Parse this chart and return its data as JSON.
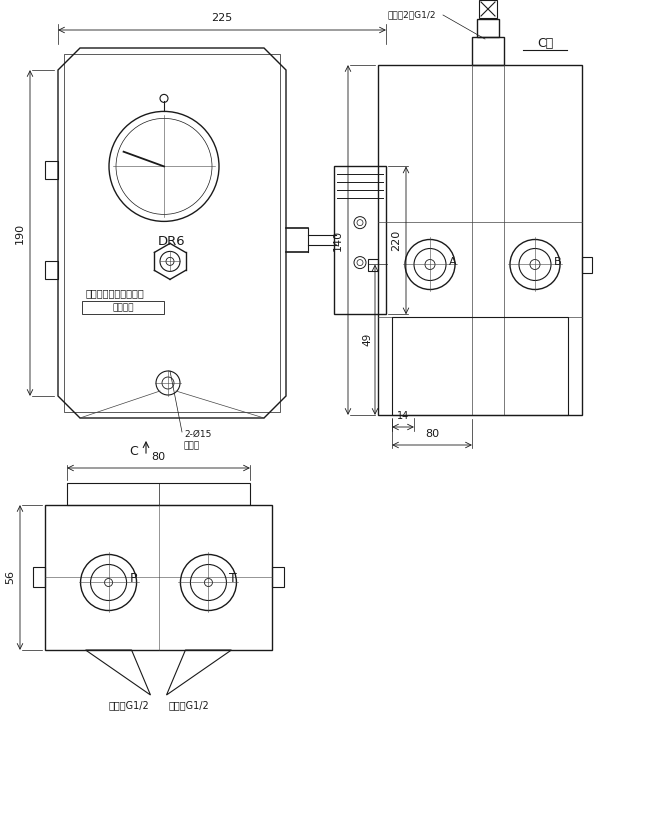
{
  "lc": "#1a1a1a",
  "dc": "#1a1a1a",
  "thin": "#444444",
  "fig_w": 6.48,
  "fig_h": 8.13,
  "labels": {
    "dim_225": "225",
    "dim_190": "190",
    "dim_220": "220",
    "dim_80_bl": "80",
    "dim_56": "56",
    "dim_80_br": "80",
    "dim_140": "140",
    "dim_49": "49",
    "dim_14": "14",
    "DR6": "DR6",
    "company": "启东润滑设备有限公司",
    "serial": "出厂编号",
    "holes": "2-Ø15",
    "holes2": "安装孔",
    "C": "C",
    "C_dir": "C向",
    "P": "P",
    "T": "T",
    "in_port": "进油口G1/2",
    "out_port": "回油口G1/2",
    "oil_outlet": "出油口2－G1/2",
    "A": "A",
    "B": "B"
  }
}
